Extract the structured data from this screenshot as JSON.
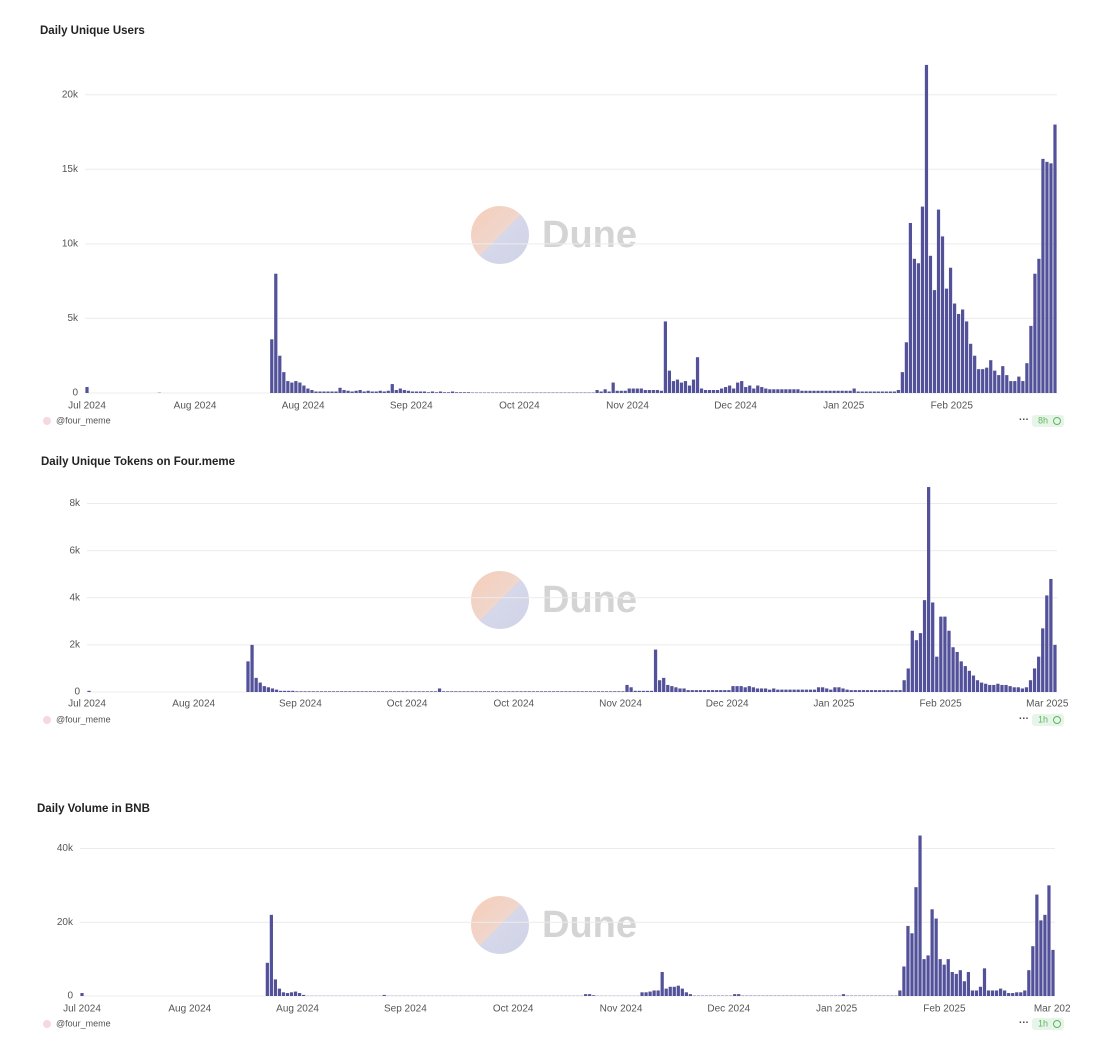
{
  "chart_data": [
    {
      "type": "bar",
      "title": "Daily Unique Users",
      "color": "#52519a",
      "grid": true,
      "watermark": "Dune",
      "footer": "@four_meme",
      "menu": "···",
      "badge": "8h",
      "ylim": [
        0,
        23000
      ],
      "yticks": [
        0,
        {
          "value": 5000,
          "label": "5k"
        },
        {
          "value": 10000,
          "label": "10k"
        },
        {
          "value": 15000,
          "label": "15k"
        },
        {
          "value": 20000,
          "label": "20k"
        }
      ],
      "x_tick_labels": [
        "Jul 2024",
        "Aug 2024",
        "Aug 2024",
        "Sep 2024",
        "Oct 2024",
        "Nov 2024",
        "Dec 2024",
        "Jan 2025",
        "Feb 2025"
      ],
      "values": [
        400,
        0,
        0,
        0,
        0,
        0,
        0,
        0,
        0,
        0,
        0,
        0,
        0,
        0,
        0,
        0,
        0,
        0,
        20,
        0,
        0,
        0,
        0,
        0,
        0,
        0,
        0,
        0,
        0,
        0,
        0,
        0,
        0,
        0,
        0,
        0,
        0,
        0,
        0,
        0,
        0,
        0,
        0,
        0,
        0,
        0,
        3600,
        8000,
        2500,
        1400,
        800,
        700,
        800,
        700,
        500,
        300,
        200,
        100,
        100,
        100,
        100,
        100,
        100,
        350,
        200,
        150,
        100,
        150,
        200,
        100,
        150,
        100,
        100,
        150,
        100,
        150,
        600,
        200,
        300,
        200,
        150,
        100,
        100,
        100,
        100,
        50,
        100,
        50,
        100,
        50,
        50,
        100,
        50,
        50,
        50,
        50,
        30,
        30,
        30,
        30,
        30,
        30,
        30,
        30,
        30,
        30,
        30,
        30,
        30,
        30,
        30,
        30,
        30,
        30,
        30,
        30,
        30,
        30,
        30,
        30,
        30,
        30,
        30,
        30,
        30,
        30,
        30,
        200,
        100,
        250,
        100,
        700,
        150,
        150,
        150,
        300,
        300,
        300,
        300,
        200,
        200,
        200,
        200,
        150,
        4800,
        1500,
        800,
        900,
        700,
        800,
        500,
        900,
        2400,
        300,
        200,
        200,
        200,
        200,
        300,
        400,
        500,
        300,
        700,
        800,
        400,
        500,
        300,
        500,
        400,
        300,
        250,
        250,
        250,
        250,
        250,
        250,
        250,
        250,
        150,
        150,
        150,
        150,
        150,
        150,
        150,
        150,
        150,
        150,
        150,
        150,
        150,
        300,
        100,
        100,
        100,
        100,
        100,
        100,
        100,
        100,
        100,
        100,
        200,
        1400,
        3400,
        11400,
        9000,
        8700,
        12500,
        22000,
        9200,
        6900,
        12300,
        10500,
        7000,
        8400,
        6000,
        5300,
        5600,
        4800,
        3300,
        2500,
        1600,
        1600,
        1700,
        2200,
        1500,
        1200,
        1800,
        1200,
        800,
        800,
        1100,
        800,
        2000,
        4500,
        8000,
        9000,
        15700,
        15500,
        15400,
        18000
      ]
    },
    {
      "type": "bar",
      "title": "Daily Unique Tokens on Four.meme",
      "color": "#52519a",
      "grid": true,
      "watermark": "Dune",
      "footer": "@four_meme",
      "menu": "···",
      "badge": "1h",
      "ylim": [
        0,
        9000
      ],
      "yticks": [
        0,
        {
          "value": 2000,
          "label": "2k"
        },
        {
          "value": 4000,
          "label": "4k"
        },
        {
          "value": 6000,
          "label": "6k"
        },
        {
          "value": 8000,
          "label": "8k"
        }
      ],
      "x_tick_labels": [
        "Jul 2024",
        "Aug 2024",
        "Sep 2024",
        "Oct 2024",
        "Oct 2024",
        "Nov 2024",
        "Dec 2024",
        "Jan 2025",
        "Feb 2025",
        "Mar 2025"
      ],
      "values": [
        50,
        0,
        0,
        0,
        0,
        0,
        0,
        0,
        0,
        0,
        0,
        0,
        0,
        0,
        0,
        0,
        0,
        0,
        0,
        0,
        0,
        0,
        0,
        0,
        0,
        0,
        0,
        0,
        0,
        0,
        0,
        0,
        0,
        0,
        0,
        0,
        0,
        0,
        0,
        1300,
        2000,
        600,
        400,
        250,
        200,
        150,
        100,
        50,
        50,
        50,
        50,
        30,
        30,
        30,
        30,
        30,
        30,
        30,
        30,
        30,
        30,
        30,
        30,
        30,
        30,
        30,
        30,
        30,
        30,
        30,
        30,
        30,
        30,
        30,
        30,
        30,
        30,
        30,
        30,
        30,
        30,
        30,
        30,
        30,
        30,
        30,
        150,
        30,
        30,
        30,
        30,
        30,
        30,
        30,
        30,
        30,
        30,
        30,
        30,
        30,
        30,
        30,
        30,
        30,
        30,
        30,
        30,
        30,
        30,
        30,
        30,
        30,
        30,
        30,
        30,
        30,
        30,
        30,
        30,
        30,
        30,
        30,
        30,
        30,
        30,
        30,
        30,
        30,
        30,
        30,
        30,
        30,
        300,
        200,
        50,
        50,
        50,
        50,
        50,
        1800,
        500,
        600,
        300,
        250,
        200,
        150,
        150,
        80,
        80,
        80,
        80,
        80,
        80,
        80,
        80,
        80,
        80,
        80,
        250,
        250,
        250,
        200,
        250,
        200,
        150,
        150,
        150,
        100,
        150,
        100,
        100,
        100,
        100,
        100,
        100,
        100,
        100,
        100,
        100,
        200,
        200,
        150,
        100,
        200,
        200,
        150,
        100,
        80,
        80,
        80,
        80,
        80,
        80,
        80,
        80,
        80,
        80,
        80,
        80,
        80,
        500,
        1000,
        2600,
        2200,
        2500,
        3900,
        8700,
        3800,
        1500,
        3200,
        3200,
        2600,
        1900,
        1700,
        1300,
        1100,
        900,
        700,
        500,
        400,
        350,
        300,
        300,
        350,
        300,
        300,
        250,
        200,
        200,
        150,
        200,
        500,
        1000,
        1500,
        2700,
        4100,
        4800,
        2000
      ]
    },
    {
      "type": "bar",
      "title": "Daily Volume in BNB",
      "color": "#52519a",
      "grid": true,
      "watermark": "Dune",
      "footer": "@four_meme",
      "menu": "···",
      "badge": "1h",
      "ylim": [
        0,
        45000
      ],
      "yticks": [
        0,
        {
          "value": 20000,
          "label": "20k"
        },
        {
          "value": 40000,
          "label": "40k"
        }
      ],
      "x_tick_labels": [
        "Jul 2024",
        "Aug 2024",
        "Aug 2024",
        "Sep 2024",
        "Oct 2024",
        "Nov 2024",
        "Dec 2024",
        "Jan 2025",
        "Feb 2025",
        "Mar 202"
      ],
      "values": [
        800,
        0,
        0,
        0,
        0,
        0,
        0,
        0,
        0,
        0,
        0,
        0,
        0,
        0,
        0,
        0,
        0,
        0,
        0,
        0,
        0,
        0,
        0,
        0,
        0,
        0,
        0,
        0,
        0,
        0,
        0,
        0,
        0,
        0,
        0,
        0,
        0,
        0,
        0,
        0,
        0,
        0,
        0,
        0,
        0,
        0,
        9000,
        22000,
        4500,
        2000,
        1000,
        800,
        1000,
        1200,
        800,
        300,
        50,
        50,
        50,
        50,
        50,
        50,
        50,
        50,
        50,
        50,
        50,
        50,
        50,
        50,
        50,
        50,
        50,
        50,
        50,
        300,
        50,
        50,
        50,
        50,
        50,
        50,
        50,
        50,
        50,
        50,
        50,
        50,
        50,
        50,
        50,
        50,
        50,
        50,
        50,
        50,
        50,
        50,
        50,
        50,
        50,
        50,
        50,
        50,
        50,
        50,
        50,
        50,
        50,
        50,
        50,
        50,
        50,
        50,
        50,
        50,
        50,
        50,
        50,
        50,
        50,
        50,
        50,
        50,
        50,
        500,
        500,
        200,
        50,
        50,
        50,
        50,
        50,
        50,
        50,
        50,
        50,
        50,
        50,
        1000,
        1000,
        1200,
        1500,
        1500,
        6500,
        2000,
        2500,
        2500,
        2800,
        2000,
        1000,
        500,
        100,
        100,
        100,
        100,
        100,
        100,
        100,
        100,
        100,
        100,
        500,
        500,
        100,
        100,
        100,
        100,
        100,
        100,
        100,
        100,
        100,
        100,
        100,
        100,
        100,
        100,
        100,
        100,
        100,
        100,
        100,
        100,
        100,
        100,
        100,
        100,
        100,
        500,
        100,
        100,
        100,
        100,
        100,
        100,
        100,
        100,
        100,
        100,
        100,
        100,
        100,
        1500,
        8000,
        19000,
        17000,
        29500,
        43500,
        10000,
        11000,
        23500,
        21000,
        10000,
        8500,
        10000,
        6500,
        6000,
        7000,
        4000,
        6500,
        1500,
        1500,
        2500,
        7500,
        1500,
        1500,
        1500,
        2000,
        1500,
        800,
        800,
        1000,
        1000,
        1500,
        7000,
        13500,
        27500,
        20500,
        22000,
        30000,
        12500
      ]
    }
  ]
}
